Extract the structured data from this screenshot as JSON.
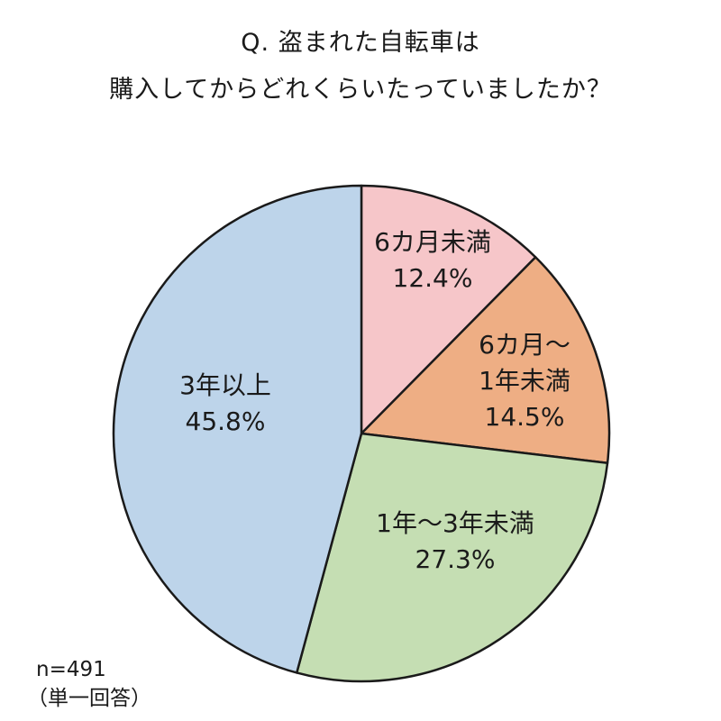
{
  "title": {
    "line1": "Q. 盗まれた自転車は",
    "line2": "購入してからどれくらいたっていましたか？"
  },
  "sample": {
    "n": "n=491",
    "note": "（単一回答）"
  },
  "colors": {
    "outline": "#1a1a1a",
    "text": "#1a1a1a"
  },
  "chart_data": {
    "type": "pie",
    "title": "Q. 盗まれた自転車は 購入してからどれくらいたっていましたか？",
    "unit": "%",
    "start": "12 o'clock, clockwise",
    "slices": [
      {
        "label_lines": [
          "6カ月未満"
        ],
        "value": 12.4,
        "value_label": "12.4%",
        "color": "#f6c6c9"
      },
      {
        "label_lines": [
          "6カ月～",
          "1年未満"
        ],
        "value": 14.5,
        "value_label": "14.5%",
        "color": "#eeae84"
      },
      {
        "label_lines": [
          "1年～3年未満"
        ],
        "value": 27.3,
        "value_label": "27.3%",
        "color": "#c5deb3"
      },
      {
        "label_lines": [
          "3年以上"
        ],
        "value": 45.8,
        "value_label": "45.8%",
        "color": "#bdd4ea"
      }
    ]
  }
}
